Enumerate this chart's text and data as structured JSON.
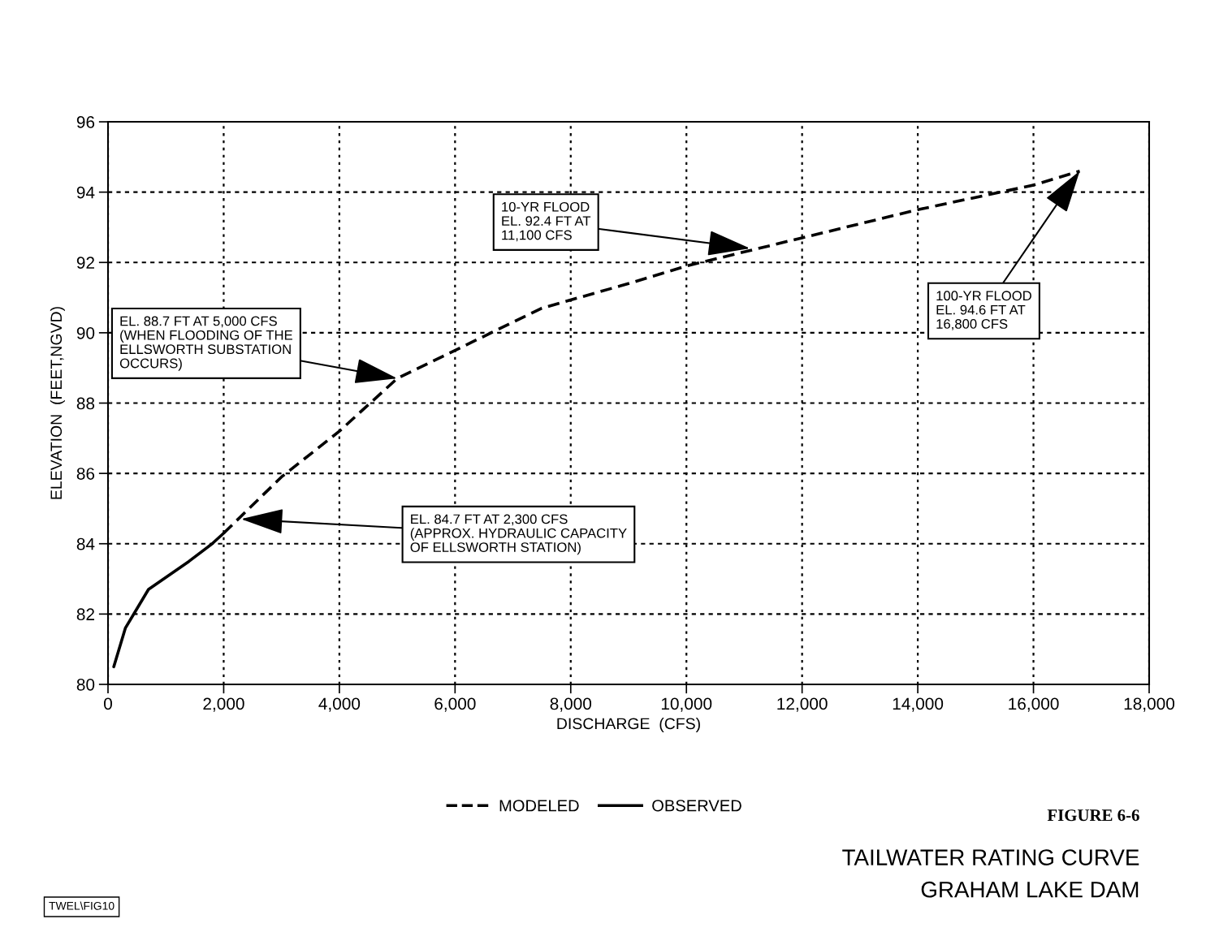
{
  "chart_data": {
    "type": "line",
    "title": "TAILWATER RATING CURVE",
    "subtitle": "GRAHAM LAKE DAM",
    "xlabel": "DISCHARGE  (CFS)",
    "ylabel": "ELEVATION  (FEET,NGVD)",
    "series": [
      {
        "name": "MODELED",
        "color": "#000000",
        "line_style": "dashed",
        "x": [
          2000,
          3000,
          4000,
          5000,
          6000,
          7500,
          9000,
          10000,
          12000,
          14000,
          16000,
          16800
        ],
        "values": [
          84.3,
          85.9,
          87.2,
          88.7,
          89.5,
          90.7,
          91.4,
          91.9,
          92.7,
          93.5,
          94.2,
          94.6
        ]
      },
      {
        "name": "OBSERVED",
        "color": "#000000",
        "line_style": "solid",
        "x": [
          100,
          300,
          700,
          1400,
          1800,
          2000
        ],
        "values": [
          80.5,
          81.6,
          82.7,
          83.5,
          84.0,
          84.3
        ]
      }
    ],
    "xlim": [
      0,
      18000
    ],
    "ylim": [
      80,
      96
    ],
    "xticks": [
      0,
      {
        "value": 2000,
        "label": "2,000"
      },
      {
        "value": 4000,
        "label": "4,000"
      },
      {
        "value": 6000,
        "label": "6,000"
      },
      {
        "value": 8000,
        "label": "8,000"
      },
      {
        "value": 10000,
        "label": "10,000"
      },
      {
        "value": 12000,
        "label": "12,000"
      },
      {
        "value": 14000,
        "label": "14,000"
      },
      {
        "value": 16000,
        "label": "16,000"
      },
      {
        "value": 18000,
        "label": "18,000"
      }
    ],
    "yticks": [
      80,
      82,
      84,
      86,
      88,
      90,
      92,
      94,
      96
    ],
    "grid": true,
    "legend": "bottom",
    "annotations": [
      {
        "text": "EL. 88.7 FT AT 5,000 CFS\n(WHEN FLOODING OF THE\nELLSWORTH SUBSTATION\nOCCURS)",
        "x": 5000,
        "y": 88.7
      },
      {
        "text": "10-YR FLOOD\nEL. 92.4 FT AT\n11,100 CFS",
        "x": 11100,
        "y": 92.4
      },
      {
        "text": "100-YR FLOOD\nEL. 94.6 FT AT\n16,800 CFS",
        "x": 16800,
        "y": 94.6
      },
      {
        "text": "EL. 84.7 FT AT 2,300 CFS\n(APPROX. HYDRAULIC CAPACITY\nOF ELLSWORTH STATION)",
        "x": 2300,
        "y": 84.7
      },
      "FIGURE 6-6",
      "TWEL\\FIG10"
    ]
  }
}
